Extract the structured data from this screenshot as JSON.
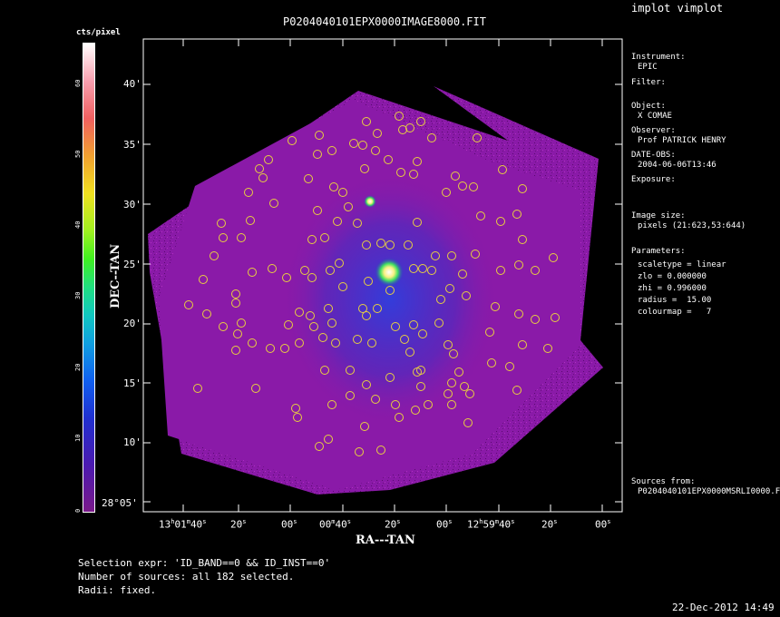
{
  "window_title": "implot vimplot",
  "image_title": "P0204040101EPX0000IMAGE8000.FIT",
  "colorbar": {
    "unit": "cts/pixel",
    "ticks": [
      "0",
      "10",
      "20",
      "30",
      "40",
      "50",
      "60"
    ]
  },
  "axes": {
    "xlabel": "RA---TAN",
    "ylabel": "DEC--TAN",
    "x_ticks": [
      {
        "main": "13",
        "sup1": "h",
        "mid": "01",
        "sup2": "m",
        "tail": "40",
        "sup3": "s"
      },
      {
        "main": "20",
        "sup3": "s"
      },
      {
        "main": "00",
        "sup3": "s"
      },
      {
        "main": "00",
        "sup2": "m",
        "tail": "40",
        "sup3": "s"
      },
      {
        "main": "20",
        "sup3": "s"
      },
      {
        "main": "00",
        "sup3": "s"
      },
      {
        "main": "12",
        "sup1": "h",
        "mid": "59",
        "sup2": "m",
        "tail": "40",
        "sup3": "s"
      },
      {
        "main": "20",
        "sup3": "s"
      },
      {
        "main": "00",
        "sup3": "s"
      }
    ],
    "y_ticks": [
      "40'",
      "35'",
      "30'",
      "25'",
      "20'",
      "15'",
      "10'",
      "28°05'"
    ]
  },
  "info_panel": {
    "instrument_label": "Instrument:",
    "instrument_value": "EPIC",
    "filter_label": "Filter:",
    "object_label": "Object:",
    "object_value": "X COMAE",
    "observer_label": "Observer:",
    "observer_value": "Prof PATRICK HENRY",
    "date_label": "DATE-OBS:",
    "date_value": "2004-06-06T13:46",
    "exposure_label": "Exposure:",
    "image_size_label": "Image size:",
    "image_size_value": "pixels (21:623,53:644)",
    "parameters_label": "Parameters:",
    "params": [
      "scaletype = linear",
      "zlo = 0.000000",
      "zhi = 0.996000",
      "radius =  15.00",
      "colourmap =   7"
    ],
    "sources_label": "Sources from:",
    "sources_value": "P0204040101EPX0000MSRLI0000.F"
  },
  "footer": {
    "selection": "Selection expr: 'ID_BAND==0 && ID_INST==0'",
    "count": "Number of sources: all 182 selected.",
    "radii": "Radii: fixed.",
    "timestamp": "22-Dec-2012 14:49"
  },
  "colors": {
    "background": "#000000",
    "image_field": "#8a1aa8",
    "source_circle": "#e8d040",
    "text": "#ffffff"
  }
}
